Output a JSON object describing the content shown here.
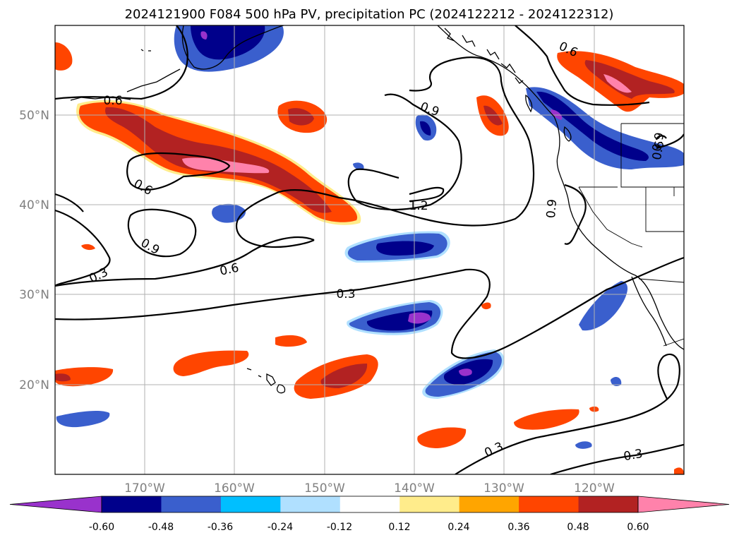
{
  "title": "2024121900 F084 500 hPa PV, precipitation PC (2024122212 - 2024122312)",
  "lon_labels": [
    "170°W",
    "160°W",
    "150°W",
    "140°W",
    "130°W",
    "120°W"
  ],
  "lat_labels": [
    "50°N",
    "40°N",
    "30°N",
    "20°N"
  ],
  "colorbar": {
    "ticks": [
      "-0.60",
      "-0.48",
      "-0.36",
      "-0.24",
      "-0.12",
      "0.12",
      "0.24",
      "0.36",
      "0.48",
      "0.60"
    ],
    "colors": [
      "#9932cc",
      "#00008b",
      "#3a5fcd",
      "#00bfff",
      "#b0e0ff",
      "#ffffff",
      "#ffec8b",
      "#ffa500",
      "#ff4500",
      "#b22222",
      "#ff82ab"
    ]
  },
  "contour_labels": [
    "0.6",
    "0.9",
    "0.6",
    "0.9",
    "1.2",
    "0.3",
    "0.6",
    "0.3",
    "0.3",
    "0.3",
    "0.9",
    "0.6",
    "0.6",
    "0.9"
  ],
  "colors": {
    "negative_strong": "#00008b",
    "negative_mid": "#3a5fcd",
    "positive_mid": "#ff4500",
    "positive_strong": "#b22222",
    "positive_max": "#ff82ab"
  }
}
